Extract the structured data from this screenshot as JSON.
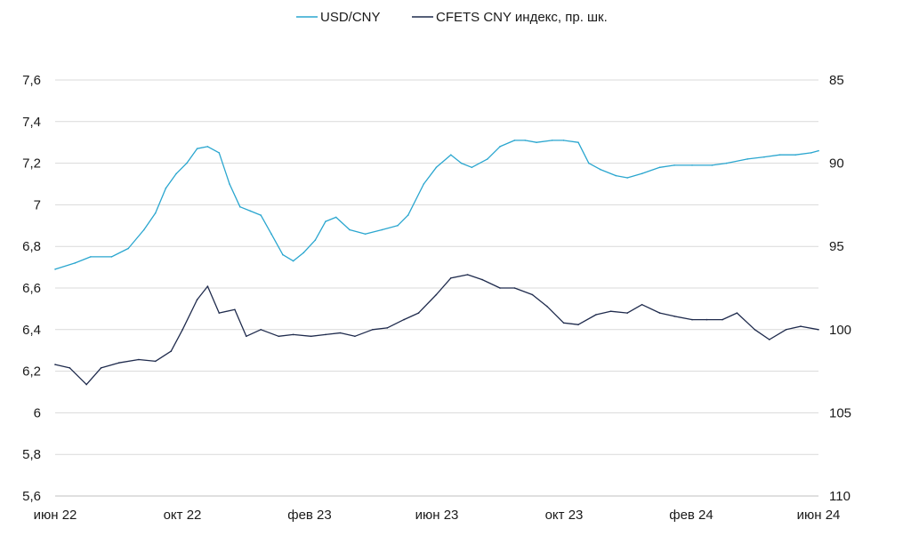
{
  "chart_data": {
    "type": "line",
    "legend_position": "top-center",
    "grid": true,
    "x_ticks": [
      "июн 22",
      "окт 22",
      "фев 23",
      "июн 23",
      "окт 23",
      "фев 24",
      "июн 24"
    ],
    "x_range": [
      "2022-06-01",
      "2024-06-01"
    ],
    "left_axis": {
      "ticks": [
        "7,6",
        "7,4",
        "7,2",
        "7",
        "6,8",
        "6,6",
        "6,4",
        "6,2",
        "6",
        "5,8",
        "5,6"
      ],
      "ylim": [
        5.6,
        7.6
      ]
    },
    "right_axis": {
      "ticks": [
        "85",
        "90",
        "95",
        "100",
        "105",
        "110"
      ],
      "ylim": [
        110,
        85
      ],
      "inverted": true
    },
    "series": [
      {
        "name": "USD/CNY",
        "axis": "left",
        "color": "#2aa6cf",
        "x": [
          "2022-06-01",
          "2022-06-20",
          "2022-07-05",
          "2022-07-25",
          "2022-08-10",
          "2022-08-25",
          "2022-09-05",
          "2022-09-15",
          "2022-09-25",
          "2022-10-05",
          "2022-10-15",
          "2022-10-25",
          "2022-11-05",
          "2022-11-15",
          "2022-11-25",
          "2022-12-05",
          "2022-12-15",
          "2022-12-25",
          "2023-01-05",
          "2023-01-15",
          "2023-01-25",
          "2023-02-05",
          "2023-02-15",
          "2023-02-25",
          "2023-03-10",
          "2023-03-25",
          "2023-04-10",
          "2023-04-25",
          "2023-05-05",
          "2023-05-20",
          "2023-06-01",
          "2023-06-15",
          "2023-06-25",
          "2023-07-05",
          "2023-07-20",
          "2023-08-01",
          "2023-08-15",
          "2023-08-25",
          "2023-09-05",
          "2023-09-20",
          "2023-10-01",
          "2023-10-15",
          "2023-10-25",
          "2023-11-05",
          "2023-11-20",
          "2023-12-01",
          "2023-12-15",
          "2024-01-01",
          "2024-01-15",
          "2024-02-01",
          "2024-02-20",
          "2024-03-05",
          "2024-03-25",
          "2024-04-10",
          "2024-04-25",
          "2024-05-10",
          "2024-05-25",
          "2024-06-01"
        ],
        "values": [
          6.69,
          6.72,
          6.75,
          6.75,
          6.79,
          6.88,
          6.96,
          7.08,
          7.15,
          7.2,
          7.27,
          7.28,
          7.25,
          7.1,
          6.99,
          6.97,
          6.95,
          6.86,
          6.76,
          6.73,
          6.77,
          6.83,
          6.92,
          6.94,
          6.88,
          6.86,
          6.88,
          6.9,
          6.95,
          7.1,
          7.18,
          7.24,
          7.2,
          7.18,
          7.22,
          7.28,
          7.31,
          7.31,
          7.3,
          7.31,
          7.31,
          7.3,
          7.2,
          7.17,
          7.14,
          7.13,
          7.15,
          7.18,
          7.19,
          7.19,
          7.19,
          7.2,
          7.22,
          7.23,
          7.24,
          7.24,
          7.25,
          7.26
        ]
      },
      {
        "name": "CFETS CNY индекс, пр. шк.",
        "axis": "right",
        "color": "#1f2b4d",
        "x": [
          "2022-06-01",
          "2022-06-15",
          "2022-07-01",
          "2022-07-15",
          "2022-08-01",
          "2022-08-20",
          "2022-09-05",
          "2022-09-20",
          "2022-10-01",
          "2022-10-15",
          "2022-10-25",
          "2022-11-05",
          "2022-11-20",
          "2022-12-01",
          "2022-12-15",
          "2023-01-01",
          "2023-01-15",
          "2023-02-01",
          "2023-02-15",
          "2023-03-01",
          "2023-03-15",
          "2023-04-01",
          "2023-04-15",
          "2023-05-01",
          "2023-05-15",
          "2023-06-01",
          "2023-06-15",
          "2023-07-01",
          "2023-07-15",
          "2023-08-01",
          "2023-08-15",
          "2023-09-01",
          "2023-09-15",
          "2023-10-01",
          "2023-10-15",
          "2023-11-01",
          "2023-11-15",
          "2023-12-01",
          "2023-12-15",
          "2024-01-01",
          "2024-01-15",
          "2024-02-01",
          "2024-02-15",
          "2024-03-01",
          "2024-03-15",
          "2024-04-01",
          "2024-04-15",
          "2024-05-01",
          "2024-05-15",
          "2024-06-01"
        ],
        "values": [
          102.1,
          102.3,
          103.3,
          102.3,
          102.0,
          101.8,
          101.9,
          101.3,
          100.0,
          98.2,
          97.4,
          99.0,
          98.8,
          100.4,
          100.0,
          100.4,
          100.3,
          100.4,
          100.3,
          100.2,
          100.4,
          100.0,
          99.9,
          99.4,
          99.0,
          97.9,
          96.9,
          96.7,
          97.0,
          97.5,
          97.5,
          97.9,
          98.6,
          99.6,
          99.7,
          99.1,
          98.9,
          99.0,
          98.5,
          99.0,
          99.2,
          99.4,
          99.4,
          99.4,
          99.0,
          100.0,
          100.6,
          100.0,
          99.8,
          100.0
        ]
      }
    ]
  }
}
